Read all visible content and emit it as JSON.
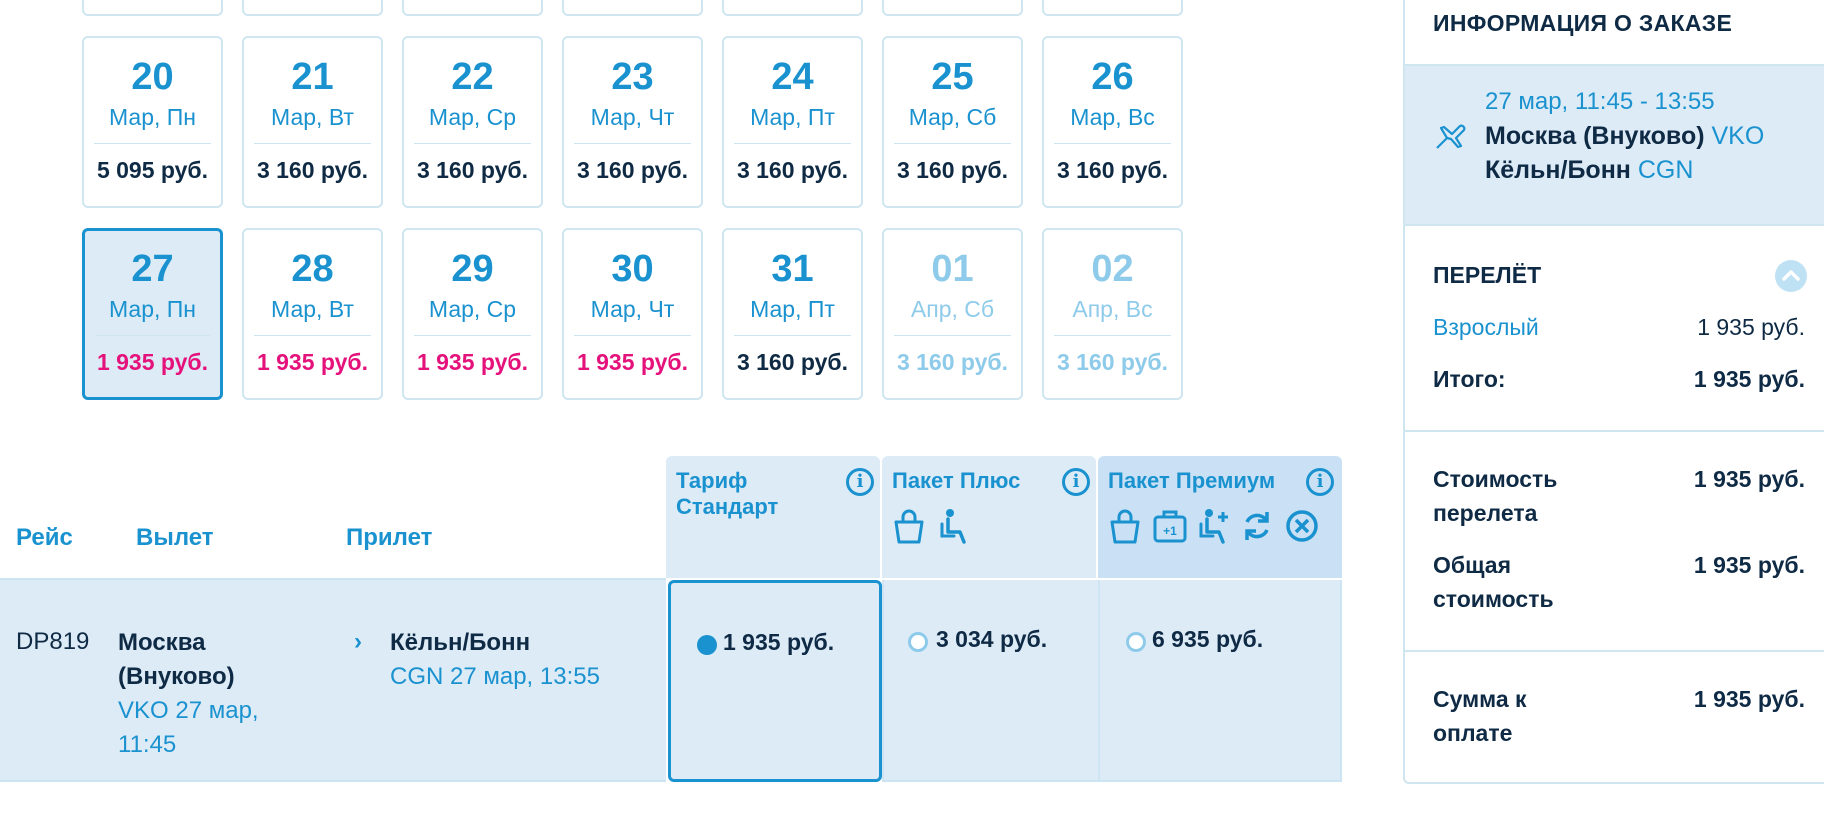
{
  "calendar": {
    "week1": [
      {
        "day": "20",
        "dow": "Мар, Пн",
        "price": "5 095 руб."
      },
      {
        "day": "21",
        "dow": "Мар, Вт",
        "price": "3 160 руб."
      },
      {
        "day": "22",
        "dow": "Мар, Ср",
        "price": "3 160 руб."
      },
      {
        "day": "23",
        "dow": "Мар, Чт",
        "price": "3 160 руб."
      },
      {
        "day": "24",
        "dow": "Мар, Пт",
        "price": "3 160 руб."
      },
      {
        "day": "25",
        "dow": "Мар, Сб",
        "price": "3 160 руб."
      },
      {
        "day": "26",
        "dow": "Мар, Вс",
        "price": "3 160 руб."
      }
    ],
    "week2": [
      {
        "day": "27",
        "dow": "Мар, Пн",
        "price": "1 935 руб.",
        "selected": true,
        "low": true
      },
      {
        "day": "28",
        "dow": "Мар, Вт",
        "price": "1 935 руб.",
        "low": true
      },
      {
        "day": "29",
        "dow": "Мар, Ср",
        "price": "1 935 руб.",
        "low": true
      },
      {
        "day": "30",
        "dow": "Мар, Чт",
        "price": "1 935 руб.",
        "low": true
      },
      {
        "day": "31",
        "dow": "Мар, Пт",
        "price": "3 160 руб."
      },
      {
        "day": "01",
        "dow": "Апр, Сб",
        "price": "3 160 руб.",
        "disabled": true
      },
      {
        "day": "02",
        "dow": "Апр, Вс",
        "price": "3 160 руб.",
        "disabled": true
      }
    ]
  },
  "table": {
    "headers": {
      "flight": "Рейс",
      "departure": "Вылет",
      "arrival": "Прилет"
    },
    "row": {
      "flight_no": "DP819",
      "dep_city": "Москва (Внуково)",
      "dep_details": "VKO 27 мар, 11:45",
      "arr_city": "Кёльн/Бонн",
      "arr_details": "CGN 27 мар, 13:55"
    }
  },
  "fares": [
    {
      "title_line1": "Тариф",
      "title_line2": "Стандарт",
      "price": "1 935 руб.",
      "selected": true,
      "icons": []
    },
    {
      "title_line1": "Пакет Плюс",
      "title_line2": "",
      "price": "3 034 руб.",
      "selected": false,
      "icons": [
        "baggage-icon",
        "priority-boarding-icon"
      ]
    },
    {
      "title_line1": "Пакет Премиум",
      "title_line2": "",
      "price": "6 935 руб.",
      "selected": false,
      "icons": [
        "baggage-icon",
        "extra-bag-icon",
        "seat-selection-icon",
        "exchange-icon",
        "cancel-icon"
      ]
    }
  ],
  "sidebar": {
    "title": "ИНФОРМАЦИЯ О ЗАКАЗЕ",
    "flight": {
      "time": "27 мар, 11:45 - 13:55",
      "from_city": "Москва (Внуково)",
      "from_code": "VKO",
      "to_city": "Кёльн/Бонн",
      "to_code": "CGN"
    },
    "section_flight": "ПЕРЕЛЁТ",
    "adult_label": "Взрослый",
    "adult_value": "1 935 руб.",
    "subtotal_label": "Итого:",
    "subtotal_value": "1 935 руб.",
    "cost_label_1": "Стоимость",
    "cost_label_2": "перелета",
    "cost_value": "1 935 руб.",
    "total_label_1": "Общая",
    "total_label_2": "стоимость",
    "total_value": "1 935 руб.",
    "pay_label_1": "Сумма к",
    "pay_label_2": "оплате",
    "pay_value": "1 935 руб."
  },
  "colors": {
    "accent": "#1a92cf",
    "low_price": "#e5127c",
    "text": "#0f2a44",
    "light_bg": "#ddebf7"
  }
}
